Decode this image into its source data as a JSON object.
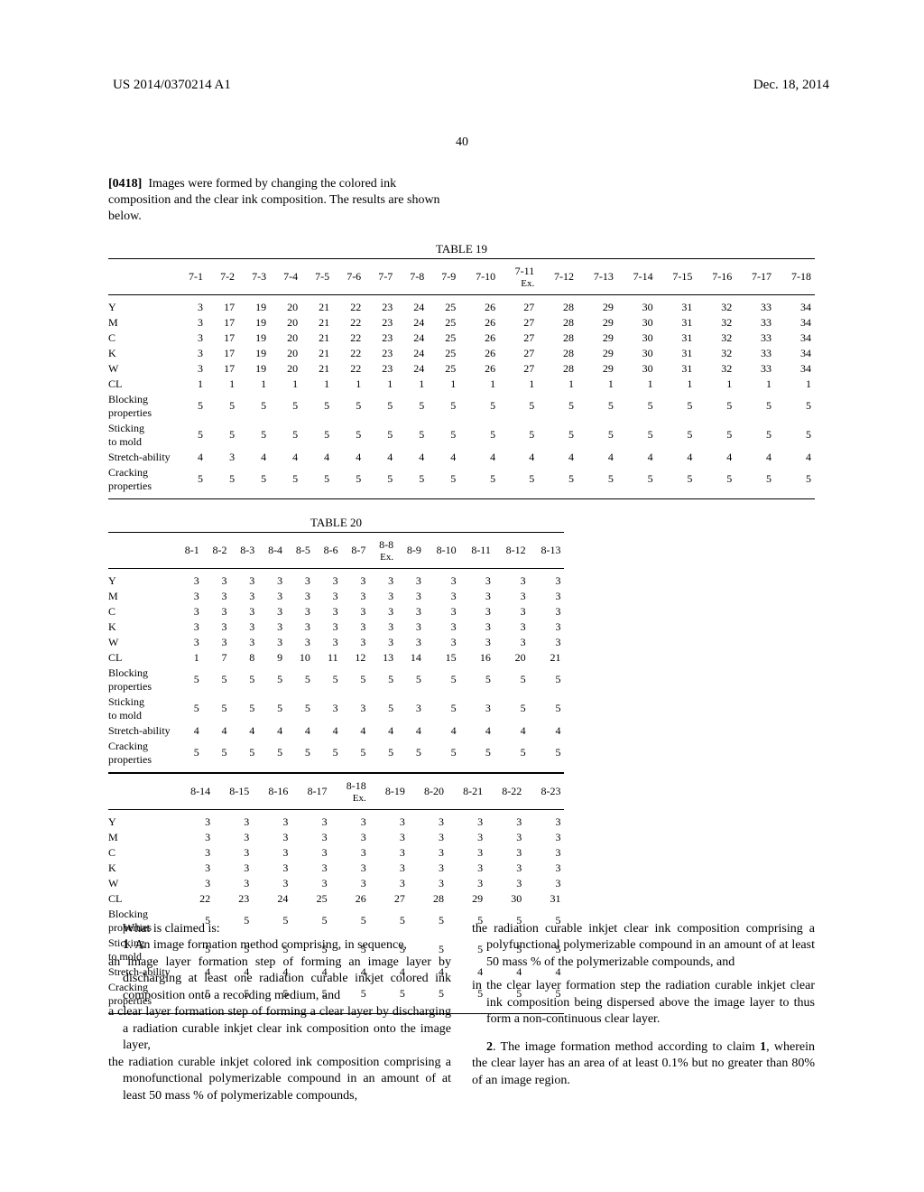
{
  "header": {
    "pub_number": "US 2014/0370214 A1",
    "date": "Dec. 18, 2014",
    "page_number": "40"
  },
  "paragraph": {
    "number": "[0418]",
    "text": "Images were formed by changing the colored ink composition and the clear ink composition. The results are shown below."
  },
  "table19": {
    "caption": "TABLE 19",
    "columns": [
      "",
      "7-1",
      "7-2",
      "7-3",
      "7-4",
      "7-5",
      "7-6",
      "7-7",
      "7-8",
      "7-9",
      "7-10",
      "7-11 Ex.",
      "7-12",
      "7-13",
      "7-14",
      "7-15",
      "7-16",
      "7-17",
      "7-18"
    ],
    "rows": [
      {
        "label": "Y",
        "vals": [
          3,
          17,
          19,
          20,
          21,
          22,
          23,
          24,
          25,
          26,
          27,
          28,
          29,
          30,
          31,
          32,
          33,
          34
        ]
      },
      {
        "label": "M",
        "vals": [
          3,
          17,
          19,
          20,
          21,
          22,
          23,
          24,
          25,
          26,
          27,
          28,
          29,
          30,
          31,
          32,
          33,
          34
        ]
      },
      {
        "label": "C",
        "vals": [
          3,
          17,
          19,
          20,
          21,
          22,
          23,
          24,
          25,
          26,
          27,
          28,
          29,
          30,
          31,
          32,
          33,
          34
        ]
      },
      {
        "label": "K",
        "vals": [
          3,
          17,
          19,
          20,
          21,
          22,
          23,
          24,
          25,
          26,
          27,
          28,
          29,
          30,
          31,
          32,
          33,
          34
        ]
      },
      {
        "label": "W",
        "vals": [
          3,
          17,
          19,
          20,
          21,
          22,
          23,
          24,
          25,
          26,
          27,
          28,
          29,
          30,
          31,
          32,
          33,
          34
        ]
      },
      {
        "label": "CL",
        "vals": [
          1,
          1,
          1,
          1,
          1,
          1,
          1,
          1,
          1,
          1,
          1,
          1,
          1,
          1,
          1,
          1,
          1,
          1
        ]
      },
      {
        "label": "Blocking properties",
        "vals": [
          5,
          5,
          5,
          5,
          5,
          5,
          5,
          5,
          5,
          5,
          5,
          5,
          5,
          5,
          5,
          5,
          5,
          5
        ]
      },
      {
        "label": "Sticking to mold",
        "vals": [
          5,
          5,
          5,
          5,
          5,
          5,
          5,
          5,
          5,
          5,
          5,
          5,
          5,
          5,
          5,
          5,
          5,
          5
        ]
      },
      {
        "label": "Stretch-ability",
        "vals": [
          4,
          3,
          4,
          4,
          4,
          4,
          4,
          4,
          4,
          4,
          4,
          4,
          4,
          4,
          4,
          4,
          4,
          4
        ]
      },
      {
        "label": "Cracking properties",
        "vals": [
          5,
          5,
          5,
          5,
          5,
          5,
          5,
          5,
          5,
          5,
          5,
          5,
          5,
          5,
          5,
          5,
          5,
          5
        ]
      }
    ]
  },
  "table20": {
    "caption": "TABLE 20",
    "part1": {
      "columns": [
        "",
        "8-1",
        "8-2",
        "8-3",
        "8-4",
        "8-5",
        "8-6",
        "8-7",
        "8-8 Ex.",
        "8-9",
        "8-10",
        "8-11",
        "8-12",
        "8-13"
      ],
      "rows": [
        {
          "label": "Y",
          "vals": [
            3,
            3,
            3,
            3,
            3,
            3,
            3,
            3,
            3,
            3,
            3,
            3,
            3
          ]
        },
        {
          "label": "M",
          "vals": [
            3,
            3,
            3,
            3,
            3,
            3,
            3,
            3,
            3,
            3,
            3,
            3,
            3
          ]
        },
        {
          "label": "C",
          "vals": [
            3,
            3,
            3,
            3,
            3,
            3,
            3,
            3,
            3,
            3,
            3,
            3,
            3
          ]
        },
        {
          "label": "K",
          "vals": [
            3,
            3,
            3,
            3,
            3,
            3,
            3,
            3,
            3,
            3,
            3,
            3,
            3
          ]
        },
        {
          "label": "W",
          "vals": [
            3,
            3,
            3,
            3,
            3,
            3,
            3,
            3,
            3,
            3,
            3,
            3,
            3
          ]
        },
        {
          "label": "CL",
          "vals": [
            1,
            7,
            8,
            9,
            10,
            11,
            12,
            13,
            14,
            15,
            16,
            20,
            21
          ]
        },
        {
          "label": "Blocking properties",
          "vals": [
            5,
            5,
            5,
            5,
            5,
            5,
            5,
            5,
            5,
            5,
            5,
            5,
            5
          ]
        },
        {
          "label": "Sticking to mold",
          "vals": [
            5,
            5,
            5,
            5,
            5,
            3,
            3,
            5,
            3,
            5,
            3,
            5,
            5
          ]
        },
        {
          "label": "Stretch-ability",
          "vals": [
            4,
            4,
            4,
            4,
            4,
            4,
            4,
            4,
            4,
            4,
            4,
            4,
            4
          ]
        },
        {
          "label": "Cracking properties",
          "vals": [
            5,
            5,
            5,
            5,
            5,
            5,
            5,
            5,
            5,
            5,
            5,
            5,
            5
          ]
        }
      ]
    },
    "part2": {
      "columns": [
        "",
        "8-14",
        "8-15",
        "8-16",
        "8-17",
        "8-18 Ex.",
        "8-19",
        "8-20",
        "8-21",
        "8-22",
        "8-23"
      ],
      "rows": [
        {
          "label": "Y",
          "vals": [
            3,
            3,
            3,
            3,
            3,
            3,
            3,
            3,
            3,
            3
          ]
        },
        {
          "label": "M",
          "vals": [
            3,
            3,
            3,
            3,
            3,
            3,
            3,
            3,
            3,
            3
          ]
        },
        {
          "label": "C",
          "vals": [
            3,
            3,
            3,
            3,
            3,
            3,
            3,
            3,
            3,
            3
          ]
        },
        {
          "label": "K",
          "vals": [
            3,
            3,
            3,
            3,
            3,
            3,
            3,
            3,
            3,
            3
          ]
        },
        {
          "label": "W",
          "vals": [
            3,
            3,
            3,
            3,
            3,
            3,
            3,
            3,
            3,
            3
          ]
        },
        {
          "label": "CL",
          "vals": [
            22,
            23,
            24,
            25,
            26,
            27,
            28,
            29,
            30,
            31
          ]
        },
        {
          "label": "Blocking properties",
          "vals": [
            5,
            5,
            5,
            5,
            5,
            5,
            5,
            5,
            5,
            5
          ]
        },
        {
          "label": "Sticking to mold",
          "vals": [
            5,
            5,
            5,
            5,
            5,
            5,
            5,
            5,
            5,
            5
          ]
        },
        {
          "label": "Stretch-ability",
          "vals": [
            4,
            4,
            4,
            4,
            4,
            4,
            4,
            4,
            4,
            4
          ]
        },
        {
          "label": "Cracking properties",
          "vals": [
            5,
            5,
            5,
            5,
            5,
            5,
            5,
            5,
            5,
            5
          ]
        }
      ]
    }
  },
  "claims": {
    "intro": "What is claimed is:",
    "claim1_leadnum": "1",
    "claim1_lead": ". An image formation method comprising, in sequence,",
    "claim1_a": "an image layer formation step of forming an image layer by discharging at least one radiation curable inkjet colored ink composition onto a recording medium, and",
    "claim1_b": "a clear layer formation step of forming a clear layer by discharging a radiation curable inkjet clear ink composition onto the image layer,",
    "claim1_c": "the radiation curable inkjet colored ink composition comprising a monofunctional polymerizable compound in an amount of at least 50 mass % of polymerizable compounds,",
    "claim1_d": "the radiation curable inkjet clear ink composition comprising a polyfunctional polymerizable compound in an amount of at least 50 mass % of the polymerizable compounds, and",
    "claim1_e": "in the clear layer formation step the radiation curable inkjet clear ink composition being dispersed above the image layer to thus form a non-continuous clear layer.",
    "claim2_leadnum": "2",
    "claim2_lead": ". The image formation method according to claim ",
    "claim2_ref": "1",
    "claim2_tail": ", wherein the clear layer has an area of at least 0.1% but no greater than 80% of an image region."
  }
}
